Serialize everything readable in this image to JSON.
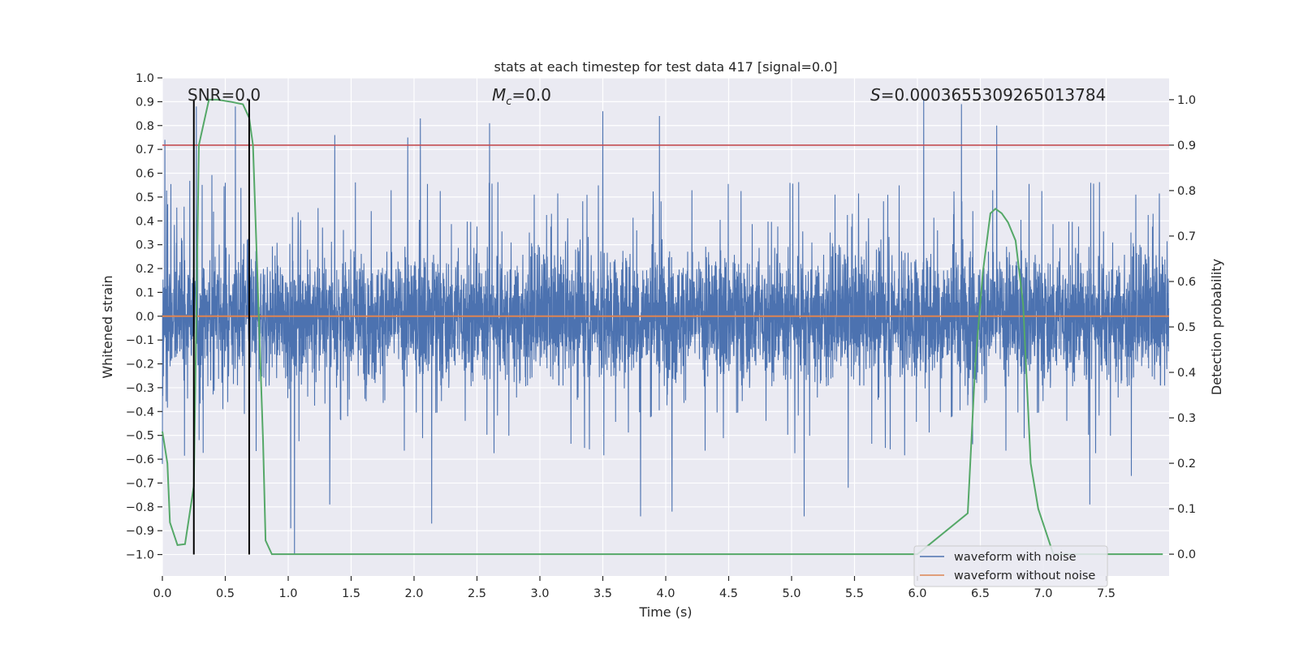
{
  "chart_data": {
    "type": "line",
    "title": "stats at each timestep for test data 417 [signal=0.0]",
    "xlabel": "Time (s)",
    "ylabel": "Whitened strain",
    "y2label": "Detection probability",
    "xlim": [
      0.0,
      8.0
    ],
    "ylim": [
      -1.09,
      1.0
    ],
    "y2lim": [
      -0.048,
      1.048
    ],
    "xticks": [
      0.0,
      0.5,
      1.0,
      1.5,
      2.0,
      2.5,
      3.0,
      3.5,
      4.0,
      4.5,
      5.0,
      5.5,
      6.0,
      6.5,
      7.0,
      7.5
    ],
    "xtick_labels": [
      "0.0",
      "0.5",
      "1.0",
      "1.5",
      "2.0",
      "2.5",
      "3.0",
      "3.5",
      "4.0",
      "4.5",
      "5.0",
      "5.5",
      "6.0",
      "6.5",
      "7.0",
      "7.5"
    ],
    "yticks": [
      1.0,
      0.9,
      0.8,
      0.7,
      0.6,
      0.5,
      0.4,
      0.3,
      0.2,
      0.1,
      0.0,
      -0.1,
      -0.2,
      -0.3,
      -0.4,
      -0.5,
      -0.6,
      -0.7,
      -0.8,
      -0.9,
      -1.0
    ],
    "ytick_labels": [
      "1.0",
      "0.9",
      "0.8",
      "0.7",
      "0.6",
      "0.5",
      "0.4",
      "0.3",
      "0.2",
      "0.1",
      "0.0",
      "−0.1",
      "−0.2",
      "−0.3",
      "−0.4",
      "−0.5",
      "−0.6",
      "−0.7",
      "−0.8",
      "−0.9",
      "−1.0"
    ],
    "y2ticks": [
      1.0,
      0.9,
      0.8,
      0.7,
      0.6,
      0.5,
      0.4,
      0.3,
      0.2,
      0.1,
      0.0
    ],
    "y2tick_labels": [
      "1.0",
      "0.9",
      "0.8",
      "0.7",
      "0.6",
      "0.5",
      "0.4",
      "0.3",
      "0.2",
      "0.1",
      "0.0"
    ],
    "annotations": {
      "snr": "SNR=0.0",
      "mc_symbol": "M",
      "mc_sub": "c",
      "mc_value": "=0.0",
      "s_symbol": "S",
      "s_value": "=0.0003655309265013784"
    },
    "threshold": {
      "y2": 0.9,
      "color": "#c44e52"
    },
    "vlines": [
      0.25,
      0.69
    ],
    "series": [
      {
        "name": "waveform with noise",
        "color": "#4c72b0",
        "axis": "y",
        "kind": "noise",
        "duration": 8.0,
        "typical_envelope": 0.42,
        "peaks": [
          {
            "x": 0.02,
            "y": 0.74
          },
          {
            "x": 0.27,
            "y": 0.88
          },
          {
            "x": 0.58,
            "y": 0.88
          },
          {
            "x": 1.37,
            "y": 0.76
          },
          {
            "x": 1.95,
            "y": 0.75
          },
          {
            "x": 2.05,
            "y": 0.83
          },
          {
            "x": 2.6,
            "y": 0.81
          },
          {
            "x": 3.5,
            "y": 0.86
          },
          {
            "x": 3.95,
            "y": 0.84
          },
          {
            "x": 6.05,
            "y": 0.91
          },
          {
            "x": 6.35,
            "y": 0.89
          },
          {
            "x": 6.63,
            "y": 0.8
          },
          {
            "x": 0.0,
            "y": -0.62
          },
          {
            "x": 1.02,
            "y": -0.89
          },
          {
            "x": 1.05,
            "y": -1.0
          },
          {
            "x": 1.33,
            "y": -0.79
          },
          {
            "x": 2.14,
            "y": -0.87
          },
          {
            "x": 3.8,
            "y": -0.84
          },
          {
            "x": 4.05,
            "y": -0.82
          },
          {
            "x": 5.1,
            "y": -0.84
          },
          {
            "x": 5.45,
            "y": -0.72
          },
          {
            "x": 7.37,
            "y": -0.79
          },
          {
            "x": 7.7,
            "y": -0.67
          }
        ]
      },
      {
        "name": "waveform without noise",
        "color": "#dd8452",
        "axis": "y",
        "x": [
          0.0,
          8.0
        ],
        "y": [
          0.0,
          0.0
        ]
      },
      {
        "name": "detection probability",
        "color": "#55a868",
        "axis": "y2",
        "x": [
          0.0,
          0.04,
          0.06,
          0.12,
          0.18,
          0.25,
          0.29,
          0.37,
          0.44,
          0.55,
          0.64,
          0.69,
          0.72,
          0.8,
          0.82,
          0.87,
          0.9,
          1.0,
          1.5,
          2.0,
          3.0,
          4.0,
          5.0,
          6.0,
          6.4,
          6.46,
          6.52,
          6.58,
          6.62,
          6.67,
          6.72,
          6.78,
          6.84,
          6.9,
          6.96,
          7.02,
          7.08,
          7.5,
          7.95
        ],
        "y": [
          0.27,
          0.2,
          0.07,
          0.02,
          0.022,
          0.15,
          0.9,
          1.0,
          1.0,
          0.995,
          0.99,
          0.96,
          0.9,
          0.25,
          0.03,
          0.0,
          0.0,
          0.0,
          0.0,
          0.0,
          0.0,
          0.0,
          0.0,
          0.0,
          0.09,
          0.42,
          0.62,
          0.75,
          0.76,
          0.75,
          0.73,
          0.69,
          0.55,
          0.2,
          0.1,
          0.05,
          0.0,
          0.0,
          0.0
        ]
      }
    ],
    "legend": {
      "placement": "lower-right",
      "entries": [
        {
          "label": "waveform with noise",
          "color": "#4c72b0"
        },
        {
          "label": "waveform without noise",
          "color": "#dd8452"
        }
      ]
    },
    "colors": {
      "plot_bg": "#eaeaf2",
      "grid": "#ffffff",
      "vline": "#000000"
    }
  }
}
